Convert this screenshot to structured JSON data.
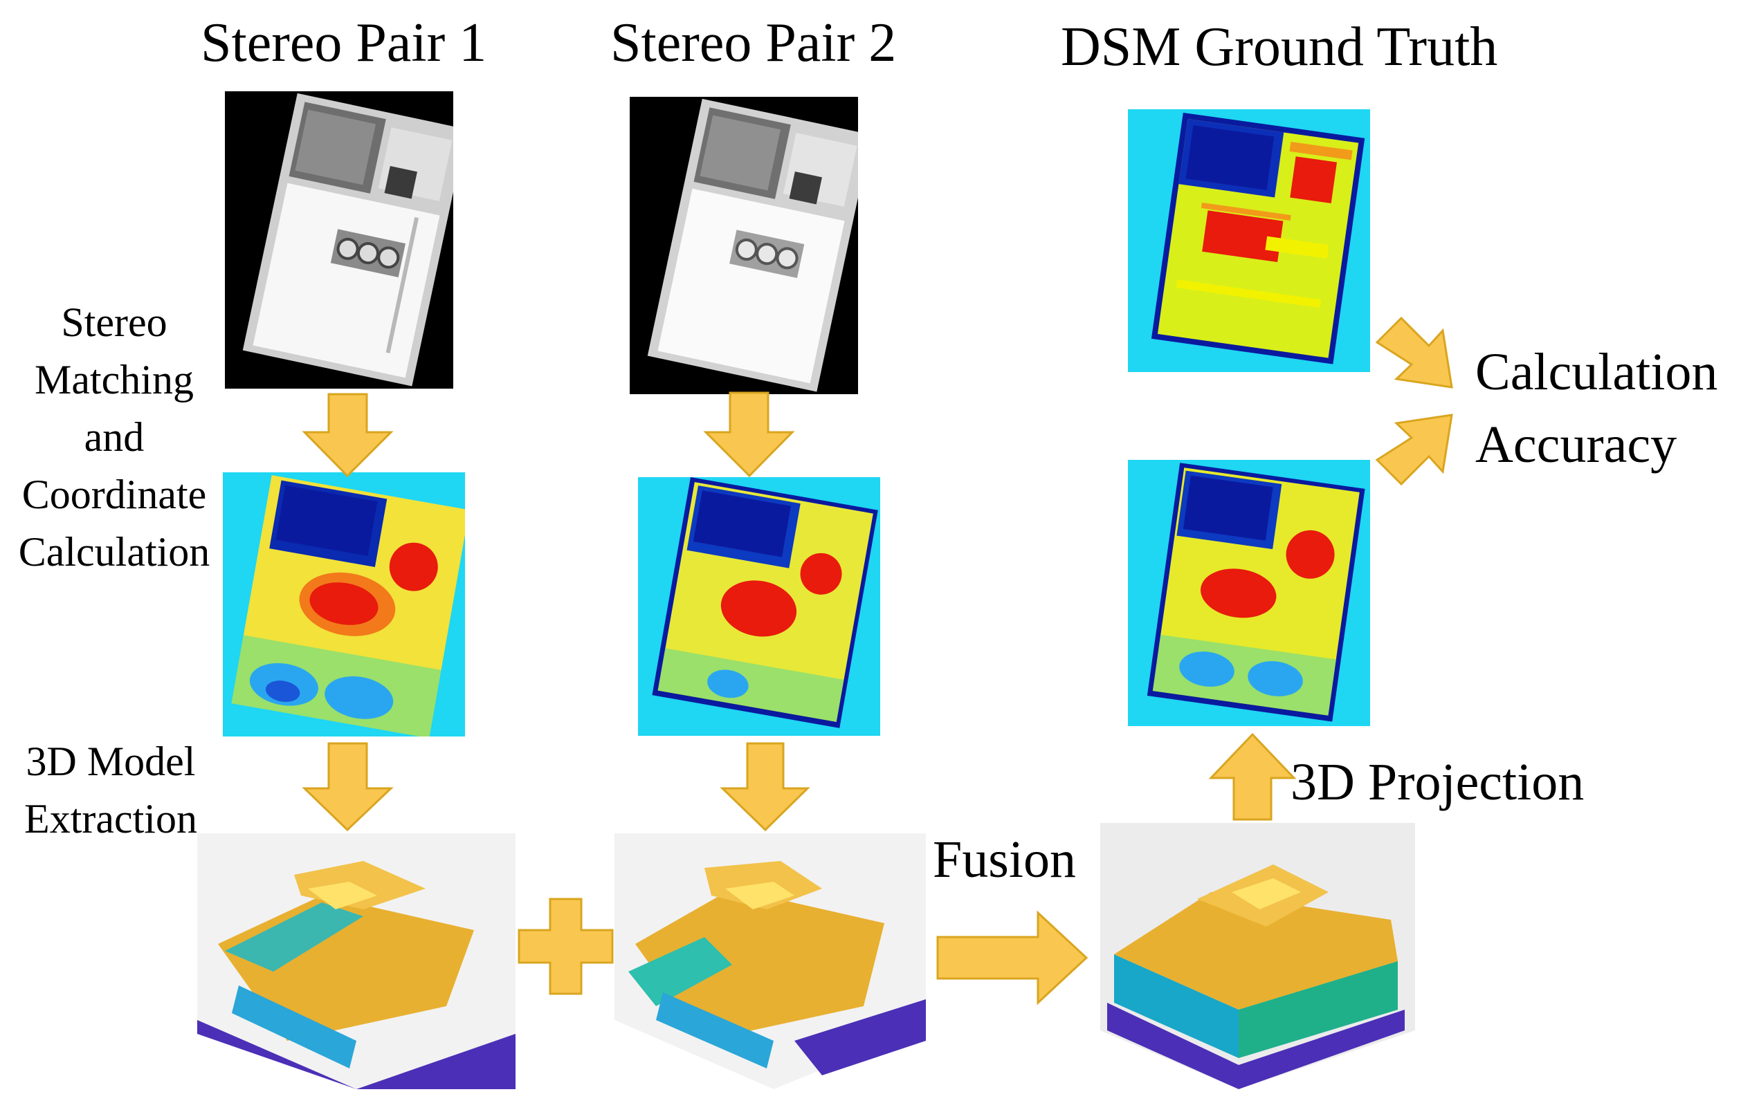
{
  "headers": {
    "stereo_pair_1": "Stereo Pair 1",
    "stereo_pair_2": "Stereo Pair 2",
    "dsm_ground_truth": "DSM Ground Truth"
  },
  "side_labels": {
    "stereo_matching_lines": [
      "Stereo",
      "Matching",
      "and",
      "Coordinate",
      "Calculation"
    ],
    "model_extraction_lines": [
      "3D Model",
      "Extraction"
    ]
  },
  "process_labels": {
    "fusion": "Fusion",
    "projection": "3D Projection",
    "calc_line1": "Calculation",
    "calc_line2": "Accuracy"
  },
  "colors": {
    "arrow_fill": "#f9c74f",
    "arrow_stroke": "#d9a520",
    "panel_bg_cyan": "#1fd6f3",
    "deep_blue": "#0a1a9e",
    "red_high": "#e81b0c",
    "yellow": "#f2f200",
    "satellite_black": "#000000",
    "plot_gray": "#ececec",
    "base_purple": "#4b2fb6"
  },
  "icons": [
    "arrow-down-icon",
    "arrow-right-icon",
    "arrow-up-icon",
    "plus-icon"
  ]
}
